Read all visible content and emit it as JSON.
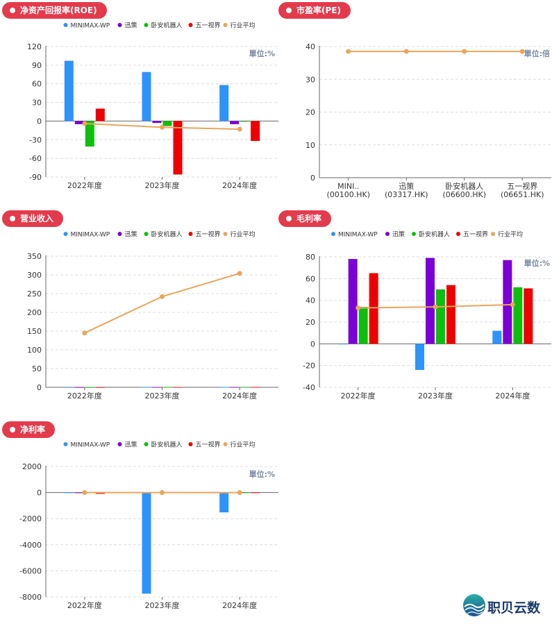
{
  "colors": {
    "MINIMAX-WP": "#2e93fa",
    "迅策": "#7b00d6",
    "卧安机器人": "#0dbf0d",
    "五一视界": "#ee0000",
    "行业平均": "#e9a55b"
  },
  "legend": [
    "MINIMAX-WP",
    "迅策",
    "卧安机器人",
    "五一视界",
    "行业平均"
  ],
  "brand": {
    "name": "职贝云数"
  },
  "chart_data": [
    {
      "id": "roe",
      "title": "净资产回报率(ROE)",
      "type": "bar",
      "unit": "單位:%",
      "categories": [
        "2022年度",
        "2023年度",
        "2024年度"
      ],
      "ylim": [
        -90,
        120
      ],
      "yticks": [
        "120",
        "90",
        "60",
        "30",
        "0",
        "-30",
        "-60",
        "-90"
      ],
      "ytick_values": [
        120,
        90,
        60,
        30,
        0,
        -30,
        -60,
        -90
      ],
      "series": [
        {
          "name": "MINIMAX-WP",
          "values": [
            97,
            79,
            58
          ]
        },
        {
          "name": "迅策",
          "values": [
            -5,
            -3,
            -5
          ]
        },
        {
          "name": "卧安机器人",
          "values": [
            -41,
            -8,
            -1
          ]
        },
        {
          "name": "五一视界",
          "values": [
            20,
            -86,
            -32
          ]
        }
      ],
      "line": {
        "name": "行业平均",
        "values": [
          -4,
          -10,
          -13
        ]
      }
    },
    {
      "id": "pe",
      "title": "市盈率(PE)",
      "type": "line",
      "unit": "單位:倍",
      "categories": [
        "MINI..\n(00100.HK)",
        "迅策\n(03317.HK)",
        "卧安机器人\n(06600.HK)",
        "五一视界\n(06651.HK)"
      ],
      "ylim": [
        0,
        40
      ],
      "yticks": [
        "40",
        "30",
        "20",
        "10",
        "0"
      ],
      "ytick_values": [
        40,
        30,
        20,
        10,
        0
      ],
      "series": [],
      "line": {
        "name": "行业平均",
        "values": [
          38.5,
          38.5,
          38.5,
          38.5
        ]
      }
    },
    {
      "id": "revenue",
      "title": "营业收入",
      "type": "bar",
      "unit": "",
      "categories": [
        "2022年度",
        "2023年度",
        "2024年度"
      ],
      "ylim": [
        0,
        350
      ],
      "yticks": [
        "350",
        "300",
        "250",
        "200",
        "150",
        "100",
        "50",
        "0"
      ],
      "ytick_values": [
        350,
        300,
        250,
        200,
        150,
        100,
        50,
        0
      ],
      "series": [
        {
          "name": "MINIMAX-WP",
          "values": [
            0.3,
            0.5,
            0.7
          ]
        },
        {
          "name": "迅策",
          "values": [
            0.3,
            0.5,
            0.7
          ]
        },
        {
          "name": "卧安机器人",
          "values": [
            0.3,
            0.5,
            0.7
          ]
        },
        {
          "name": "五一视界",
          "values": [
            0.3,
            0.5,
            0.7
          ]
        }
      ],
      "line": {
        "name": "行业平均",
        "values": [
          145,
          242,
          304
        ]
      }
    },
    {
      "id": "gross",
      "title": "毛利率",
      "type": "bar",
      "unit": "單位:%",
      "categories": [
        "2022年度",
        "2023年度",
        "2024年度"
      ],
      "ylim": [
        -40,
        80
      ],
      "yticks": [
        "80",
        "60",
        "40",
        "20",
        "0",
        "-20",
        "-40"
      ],
      "ytick_values": [
        80,
        60,
        40,
        20,
        0,
        -20,
        -40
      ],
      "series": [
        {
          "name": "MINIMAX-WP",
          "values": [
            0,
            -24,
            12
          ]
        },
        {
          "name": "迅策",
          "values": [
            78,
            79,
            77
          ]
        },
        {
          "name": "卧安机器人",
          "values": [
            34,
            50,
            52
          ]
        },
        {
          "name": "五一视界",
          "values": [
            65,
            54,
            51
          ]
        }
      ],
      "line": {
        "name": "行业平均",
        "values": [
          33,
          34,
          36
        ]
      }
    },
    {
      "id": "net",
      "title": "净利率",
      "type": "bar",
      "unit": "單位:%",
      "categories": [
        "2022年度",
        "2023年度",
        "2024年度"
      ],
      "ylim": [
        -8000,
        2000
      ],
      "yticks": [
        "2000",
        "0",
        "-2000",
        "-4000",
        "-6000",
        "-8000"
      ],
      "ytick_values": [
        2000,
        0,
        -2000,
        -4000,
        -6000,
        -8000
      ],
      "series": [
        {
          "name": "MINIMAX-WP",
          "values": [
            0,
            -7750,
            -1520
          ]
        },
        {
          "name": "迅策",
          "values": [
            -10,
            -20,
            -15
          ]
        },
        {
          "name": "卧安机器人",
          "values": [
            -5,
            -10,
            -5
          ]
        },
        {
          "name": "五一视界",
          "values": [
            -100,
            -20,
            -10
          ]
        }
      ],
      "line": {
        "name": "行业平均",
        "values": [
          0,
          0,
          0
        ]
      }
    }
  ]
}
